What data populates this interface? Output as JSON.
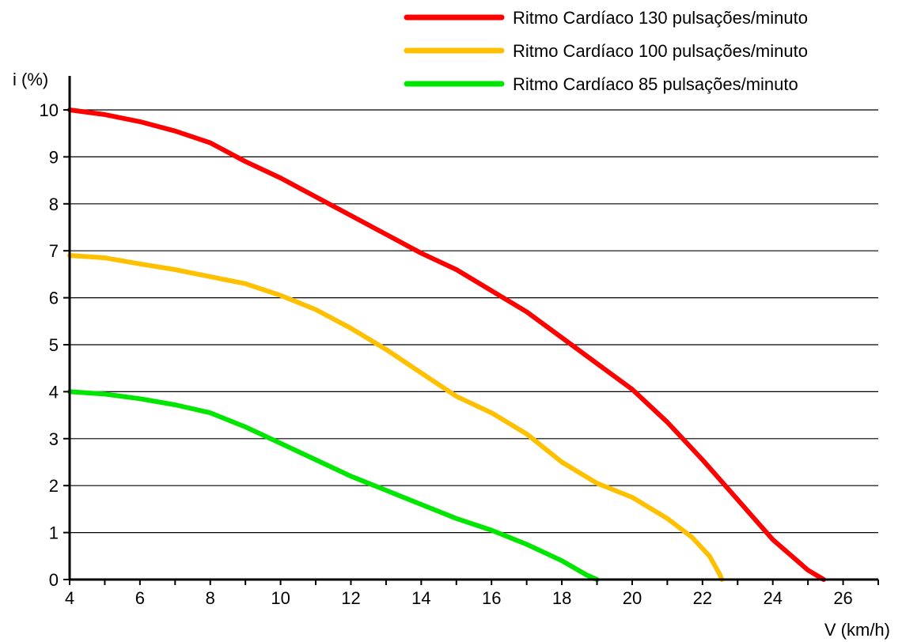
{
  "chart_data": {
    "type": "line",
    "title": "",
    "xlabel": "V (km/h)",
    "ylabel": "i (%)",
    "xlim": [
      4,
      27
    ],
    "ylim": [
      0,
      10
    ],
    "x_ticks": [
      4,
      6,
      8,
      10,
      12,
      14,
      16,
      18,
      20,
      22,
      24,
      26
    ],
    "y_ticks": [
      0,
      1,
      2,
      3,
      4,
      5,
      6,
      7,
      8,
      9,
      10
    ],
    "grid": "horizontal",
    "legend_position": "top-right",
    "series": [
      {
        "name": "Ritmo Cardíaco 130 pulsações/minuto",
        "color": "#ff0000",
        "points": [
          [
            4,
            10
          ],
          [
            5,
            9.9
          ],
          [
            6,
            9.75
          ],
          [
            7,
            9.55
          ],
          [
            8,
            9.3
          ],
          [
            9,
            8.9
          ],
          [
            10,
            8.55
          ],
          [
            11,
            8.15
          ],
          [
            12,
            7.75
          ],
          [
            13,
            7.35
          ],
          [
            14,
            6.95
          ],
          [
            15,
            6.6
          ],
          [
            16,
            6.15
          ],
          [
            17,
            5.7
          ],
          [
            18,
            5.15
          ],
          [
            19,
            4.6
          ],
          [
            20,
            4.05
          ],
          [
            21,
            3.35
          ],
          [
            22,
            2.55
          ],
          [
            23,
            1.7
          ],
          [
            24,
            0.85
          ],
          [
            25,
            0.2
          ],
          [
            25.45,
            0
          ]
        ]
      },
      {
        "name": "Ritmo Cardíaco 100 pulsações/minuto",
        "color": "#ffc000",
        "points": [
          [
            4,
            6.9
          ],
          [
            5,
            6.85
          ],
          [
            6,
            6.72
          ],
          [
            7,
            6.6
          ],
          [
            8,
            6.45
          ],
          [
            9,
            6.3
          ],
          [
            10,
            6.05
          ],
          [
            11,
            5.75
          ],
          [
            12,
            5.35
          ],
          [
            13,
            4.9
          ],
          [
            14,
            4.4
          ],
          [
            15,
            3.9
          ],
          [
            16,
            3.55
          ],
          [
            17,
            3.1
          ],
          [
            18,
            2.5
          ],
          [
            19,
            2.05
          ],
          [
            20,
            1.75
          ],
          [
            21,
            1.3
          ],
          [
            21.7,
            0.9
          ],
          [
            22.2,
            0.5
          ],
          [
            22.5,
            0.1
          ],
          [
            22.55,
            0
          ]
        ]
      },
      {
        "name": "Ritmo Cardíaco 85 pulsações/minuto",
        "color": "#00e600",
        "points": [
          [
            4,
            4
          ],
          [
            5,
            3.95
          ],
          [
            6,
            3.85
          ],
          [
            7,
            3.72
          ],
          [
            8,
            3.55
          ],
          [
            9,
            3.25
          ],
          [
            10,
            2.9
          ],
          [
            11,
            2.55
          ],
          [
            12,
            2.2
          ],
          [
            13,
            1.9
          ],
          [
            14,
            1.6
          ],
          [
            15,
            1.3
          ],
          [
            16,
            1.05
          ],
          [
            17,
            0.75
          ],
          [
            18,
            0.4
          ],
          [
            18.7,
            0.1
          ],
          [
            19,
            0
          ]
        ]
      }
    ]
  }
}
